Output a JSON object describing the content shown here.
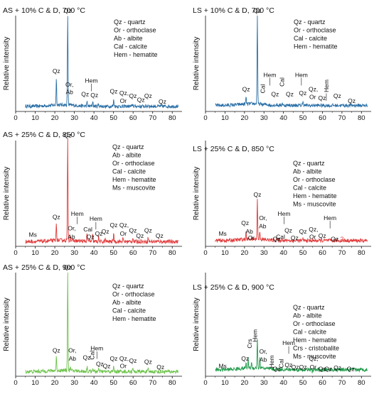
{
  "figure": {
    "panels": [
      {
        "title": "AS + 10% C & D, 700 °C",
        "ylabel": "Relative intensity",
        "legend": [
          "Qz - quartz",
          "Or - orthoclase",
          "Ab - albite",
          "Cal - calcite",
          "Hem - hematite"
        ],
        "color": "#2a6fa6",
        "chart_data": {
          "type": "line",
          "xlim": [
            0,
            85
          ],
          "xticks": [
            "0",
            "10",
            "20",
            "30",
            "40",
            "50",
            "60",
            "70",
            "80"
          ],
          "background": 0.06,
          "peaks": [
            [
              20.8,
              0.34
            ],
            [
              26.6,
              1.0
            ],
            [
              36.5,
              0.1
            ],
            [
              39.4,
              0.12
            ],
            [
              42.4,
              0.09
            ],
            [
              45.8,
              0.05
            ],
            [
              50.1,
              0.13
            ],
            [
              54.8,
              0.05
            ],
            [
              59.9,
              0.08
            ],
            [
              64.0,
              0.05
            ],
            [
              67.7,
              0.08
            ]
          ]
        },
        "annotations": [
          {
            "text": "Qz",
            "x": 26.6,
            "y": 1.03
          },
          {
            "text": "Qz",
            "x": 20.8,
            "y": 0.4
          },
          {
            "text": "Or,",
            "x": 27.5,
            "y": 0.26
          },
          {
            "text": "Ab",
            "x": 27.5,
            "y": 0.18
          },
          {
            "text": "Hem",
            "x": 38.7,
            "y": 0.3,
            "tick": true
          },
          {
            "text": "Qz",
            "x": 35.5,
            "y": 0.16
          },
          {
            "text": "Qz",
            "x": 40.2,
            "y": 0.15
          },
          {
            "text": "Qz",
            "x": 50.1,
            "y": 0.19
          },
          {
            "text": "Qz,",
            "x": 55.4,
            "y": 0.17
          },
          {
            "text": "Or",
            "x": 55.0,
            "y": 0.09
          },
          {
            "text": "Qz",
            "x": 59.9,
            "y": 0.14
          },
          {
            "text": "Qz",
            "x": 64.0,
            "y": 0.1
          },
          {
            "text": "Qz",
            "x": 67.7,
            "y": 0.14
          },
          {
            "text": "Qz",
            "x": 75.0,
            "y": 0.08
          }
        ]
      },
      {
        "title": "LS + 10% C & D, 700 °C",
        "ylabel": "Relative intensity",
        "legend": [
          "Qz - quartz",
          "Or - orthoclase",
          "Cal - calcite",
          "Hem - hematite"
        ],
        "color": "#2a6fa6",
        "chart_data": {
          "type": "line",
          "xlim": [
            0,
            85
          ],
          "xticks": [
            "0",
            "10",
            "20",
            "30",
            "40",
            "50",
            "60",
            "70",
            "80"
          ],
          "background": 0.07,
          "peaks": [
            [
              20.8,
              0.14
            ],
            [
              26.6,
              1.0
            ],
            [
              29.4,
              0.06
            ],
            [
              33.3,
              0.05
            ],
            [
              36.5,
              0.08
            ],
            [
              39.4,
              0.1
            ],
            [
              43.2,
              0.08
            ],
            [
              49.5,
              0.08
            ],
            [
              50.1,
              0.12
            ],
            [
              54.0,
              0.06
            ],
            [
              59.9,
              0.07
            ],
            [
              64.0,
              0.06
            ],
            [
              67.7,
              0.07
            ]
          ]
        },
        "annotations": [
          {
            "text": "Qz",
            "x": 26.6,
            "y": 1.03
          },
          {
            "text": "Qz",
            "x": 20.8,
            "y": 0.21
          },
          {
            "text": "Hem",
            "x": 33.0,
            "y": 0.36,
            "tick": true
          },
          {
            "text": "Cal",
            "x": 29.4,
            "y": 0.19,
            "vertical": true
          },
          {
            "text": "Qz",
            "x": 35.7,
            "y": 0.16
          },
          {
            "text": "Cal",
            "x": 39.2,
            "y": 0.26,
            "vertical": true
          },
          {
            "text": "Qz",
            "x": 43.2,
            "y": 0.16
          },
          {
            "text": "Hem",
            "x": 49.2,
            "y": 0.36,
            "tick": true
          },
          {
            "text": "Qz",
            "x": 49.9,
            "y": 0.17
          },
          {
            "text": "Qz,",
            "x": 55.3,
            "y": 0.21
          },
          {
            "text": "Or",
            "x": 55.0,
            "y": 0.13
          },
          {
            "text": "Hem",
            "x": 62.0,
            "y": 0.2,
            "vertical": true,
            "tick": true
          },
          {
            "text": "Qz",
            "x": 59.8,
            "y": 0.12
          },
          {
            "text": "Qz",
            "x": 67.6,
            "y": 0.14
          },
          {
            "text": "Qz",
            "x": 75.0,
            "y": 0.09
          }
        ]
      },
      {
        "title": "AS + 25% C & D, 850 °C",
        "ylabel": "Relative intensity",
        "legend": [
          "Qz - quartz",
          "Ab - albite",
          "Or - orthoclase",
          "Cal - calcite",
          "Hem - hematite",
          "Ms - muscovite"
        ],
        "color": "#e03a3a",
        "chart_data": {
          "type": "line",
          "xlim": [
            0,
            85
          ],
          "xticks": [
            "0",
            "10",
            "20",
            "30",
            "40",
            "50",
            "60",
            "70",
            "80"
          ],
          "background": 0.05,
          "peaks": [
            [
              20.8,
              0.21
            ],
            [
              26.6,
              1.0
            ],
            [
              27.9,
              0.1
            ],
            [
              36.5,
              0.13
            ],
            [
              39.4,
              0.12
            ],
            [
              42.4,
              0.09
            ],
            [
              45.8,
              0.07
            ],
            [
              50.1,
              0.13
            ],
            [
              54.8,
              0.08
            ],
            [
              59.9,
              0.09
            ],
            [
              64.0,
              0.06
            ],
            [
              67.7,
              0.09
            ],
            [
              73.4,
              0.05
            ]
          ]
        },
        "annotations": [
          {
            "text": "Qz",
            "x": 26.6,
            "y": 1.03
          },
          {
            "text": "Qz",
            "x": 20.8,
            "y": 0.26
          },
          {
            "text": "Hem",
            "x": 31.5,
            "y": 0.29,
            "tick": true
          },
          {
            "text": "Or,",
            "x": 28.7,
            "y": 0.15
          },
          {
            "text": "Ab",
            "x": 28.5,
            "y": 0.07
          },
          {
            "text": "Cal",
            "x": 36.9,
            "y": 0.14
          },
          {
            "text": "Hem",
            "x": 41.0,
            "y": 0.24,
            "tick": true
          },
          {
            "text": "Qz",
            "x": 38.2,
            "y": 0.07
          },
          {
            "text": "Qz",
            "x": 42.5,
            "y": 0.1
          },
          {
            "text": "Qz",
            "x": 45.8,
            "y": 0.12
          },
          {
            "text": "Qz",
            "x": 50.1,
            "y": 0.18
          },
          {
            "text": "Qz,",
            "x": 55.4,
            "y": 0.18
          },
          {
            "text": "Or",
            "x": 55.0,
            "y": 0.1
          },
          {
            "text": "Qz",
            "x": 59.9,
            "y": 0.13
          },
          {
            "text": "Qz",
            "x": 63.5,
            "y": 0.08
          },
          {
            "text": "Qz",
            "x": 67.7,
            "y": 0.13
          },
          {
            "text": "Qz",
            "x": 73.5,
            "y": 0.08
          },
          {
            "text": "Ms",
            "x": 8.8,
            "y": 0.09
          }
        ]
      },
      {
        "title": "LS + 25% C & D, 850 °C",
        "ylabel": "Relative intensity",
        "legend": [
          "Qz - quartz",
          "Ab - albite",
          "Or - orthoclase",
          "Cal - calcite",
          "Hem - hematite",
          "Ms - muscovite"
        ],
        "color": "#e03a3a",
        "chart_data": {
          "type": "line",
          "xlim": [
            0,
            85
          ],
          "xticks": [
            "0",
            "10",
            "20",
            "30",
            "40",
            "50",
            "60",
            "70",
            "80"
          ],
          "background": 0.06,
          "peaks": [
            [
              20.8,
              0.12
            ],
            [
              26.6,
              0.44
            ],
            [
              27.9,
              0.14
            ],
            [
              36.5,
              0.08
            ],
            [
              39.4,
              0.09
            ],
            [
              42.4,
              0.07
            ],
            [
              50.1,
              0.08
            ],
            [
              54.8,
              0.06
            ],
            [
              59.9,
              0.06
            ],
            [
              67.7,
              0.07
            ]
          ]
        },
        "annotations": [
          {
            "text": "Qz",
            "x": 26.6,
            "y": 0.47
          },
          {
            "text": "Qz",
            "x": 20.3,
            "y": 0.2
          },
          {
            "text": "Ab",
            "x": 22.5,
            "y": 0.12
          },
          {
            "text": "Or",
            "x": 23.5,
            "y": 0.06
          },
          {
            "text": "Or,",
            "x": 29.5,
            "y": 0.25
          },
          {
            "text": "Ab",
            "x": 29.3,
            "y": 0.17
          },
          {
            "text": "Hem",
            "x": 40.3,
            "y": 0.29,
            "tick": true
          },
          {
            "text": "Qz",
            "x": 36.5,
            "y": 0.05
          },
          {
            "text": "Cal",
            "x": 38.5,
            "y": 0.07
          },
          {
            "text": "Qz",
            "x": 42.5,
            "y": 0.13
          },
          {
            "text": "Qz",
            "x": 45.7,
            "y": 0.06
          },
          {
            "text": "Qz",
            "x": 50.0,
            "y": 0.12
          },
          {
            "text": "Qz,",
            "x": 55.4,
            "y": 0.14
          },
          {
            "text": "Or",
            "x": 55.0,
            "y": 0.07
          },
          {
            "text": "Qz",
            "x": 59.9,
            "y": 0.08
          },
          {
            "text": "Hem",
            "x": 63.9,
            "y": 0.25,
            "tick": true
          },
          {
            "text": "Qz",
            "x": 66.3,
            "y": 0.05
          },
          {
            "text": "?",
            "x": 70.0,
            "y": 0.05,
            "color": "#e03a3a"
          },
          {
            "text": "Ms",
            "x": 8.8,
            "y": 0.1
          }
        ]
      },
      {
        "title": "AS + 25% C & D, 900 °C",
        "ylabel": "Relative intensity",
        "legend": [
          "Qz - quartz",
          "Or - orthoclase",
          "Ab - albite",
          "Cal - calcite",
          "Hem - hematite"
        ],
        "color": "#6cc24a",
        "chart_data": {
          "type": "line",
          "xlim": [
            0,
            85
          ],
          "xticks": [
            "0",
            "10",
            "20",
            "30",
            "40",
            "50",
            "60",
            "70",
            "80"
          ],
          "background": 0.05,
          "peaks": [
            [
              20.8,
              0.18
            ],
            [
              26.6,
              1.0
            ],
            [
              27.9,
              0.08
            ],
            [
              36.5,
              0.1
            ],
            [
              39.4,
              0.09
            ],
            [
              42.4,
              0.07
            ],
            [
              45.8,
              0.05
            ],
            [
              50.1,
              0.1
            ],
            [
              54.8,
              0.06
            ],
            [
              59.9,
              0.08
            ],
            [
              64.0,
              0.05
            ],
            [
              67.7,
              0.07
            ],
            [
              73.4,
              0.04
            ]
          ]
        },
        "annotations": [
          {
            "text": "Qz",
            "x": 26.6,
            "y": 1.03
          },
          {
            "text": "Qz",
            "x": 20.8,
            "y": 0.23
          },
          {
            "text": "Or,",
            "x": 29.0,
            "y": 0.23
          },
          {
            "text": "Ab",
            "x": 29.0,
            "y": 0.15
          },
          {
            "text": "Qz",
            "x": 36.3,
            "y": 0.16
          },
          {
            "text": "Cal",
            "x": 39.1,
            "y": 0.16,
            "vertical": true
          },
          {
            "text": "Hem",
            "x": 41.5,
            "y": 0.25,
            "tick": true
          },
          {
            "text": "Qz",
            "x": 43.0,
            "y": 0.1
          },
          {
            "text": "Qz",
            "x": 46.5,
            "y": 0.08
          },
          {
            "text": "Qz",
            "x": 50.1,
            "y": 0.15
          },
          {
            "text": "Qz,",
            "x": 55.4,
            "y": 0.15
          },
          {
            "text": "Or",
            "x": 55.0,
            "y": 0.08
          },
          {
            "text": "Qz",
            "x": 59.9,
            "y": 0.13
          },
          {
            "text": "Qz",
            "x": 67.7,
            "y": 0.12
          },
          {
            "text": "Qz",
            "x": 74.0,
            "y": 0.07
          }
        ]
      },
      {
        "title": "LS + 25% C & D, 900 °C",
        "ylabel": "Relative intensity",
        "legend": [
          "Qz - quartz",
          "Ab - albite",
          "Or - orthoclase",
          "Cal - calcite",
          "Hem - hematite",
          "Crs - cristobalite",
          "Ms - muscovite"
        ],
        "color": "#1f9a4a",
        "chart_data": {
          "type": "line",
          "xlim": [
            0,
            85
          ],
          "xticks": [
            "0",
            "10",
            "20",
            "30",
            "40",
            "50",
            "60",
            "70",
            "80"
          ],
          "background": 0.07,
          "peaks": [
            [
              20.8,
              0.12
            ],
            [
              21.9,
              0.16
            ],
            [
              23.6,
              0.12
            ],
            [
              26.6,
              0.36
            ],
            [
              27.9,
              0.16
            ],
            [
              29.4,
              0.09
            ],
            [
              33.2,
              0.07
            ],
            [
              36.5,
              0.07
            ],
            [
              39.4,
              0.08
            ],
            [
              42.4,
              0.07
            ],
            [
              50.1,
              0.07
            ],
            [
              54.8,
              0.05
            ],
            [
              59.9,
              0.05
            ],
            [
              67.7,
              0.06
            ]
          ]
        },
        "annotations": [
          {
            "text": "Qz",
            "x": 20.3,
            "y": 0.15
          },
          {
            "text": "Crs",
            "x": 22.7,
            "y": 0.27,
            "vertical": true
          },
          {
            "text": "Hem",
            "x": 25.3,
            "y": 0.33,
            "vertical": true
          },
          {
            "text": "Or,",
            "x": 29.6,
            "y": 0.22
          },
          {
            "text": "Ab",
            "x": 29.6,
            "y": 0.14
          },
          {
            "text": "Hem",
            "x": 33.9,
            "y": 0.08,
            "vertical": true
          },
          {
            "text": "Qz",
            "x": 36.5,
            "y": 0.05
          },
          {
            "text": "Cal",
            "x": 38.9,
            "y": 0.08,
            "vertical": true
          },
          {
            "text": "Hem",
            "x": 42.7,
            "y": 0.3,
            "tick": true
          },
          {
            "text": "Qz",
            "x": 42.6,
            "y": 0.09
          },
          {
            "text": "Qz",
            "x": 46.0,
            "y": 0.07
          },
          {
            "text": "Qz",
            "x": 50.0,
            "y": 0.07
          },
          {
            "text": "Qz,",
            "x": 55.5,
            "y": 0.15
          },
          {
            "text": "Or",
            "x": 55.2,
            "y": 0.07
          },
          {
            "text": "Qz",
            "x": 59.9,
            "y": 0.05
          },
          {
            "text": "Qz",
            "x": 63.0,
            "y": 0.05
          },
          {
            "text": "Qz",
            "x": 67.7,
            "y": 0.06
          },
          {
            "text": "Qz",
            "x": 74.5,
            "y": 0.05
          },
          {
            "text": "Ms",
            "x": 8.8,
            "y": 0.08
          }
        ]
      }
    ]
  }
}
